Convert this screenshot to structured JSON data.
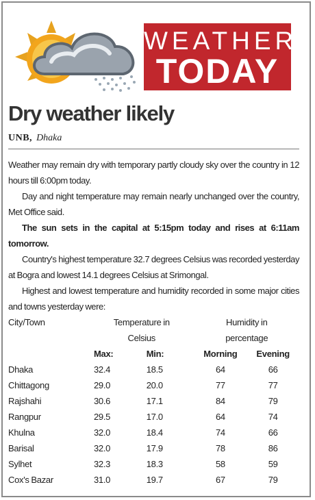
{
  "banner": {
    "top": "WEATHER",
    "bottom": "TODAY"
  },
  "headline": "Dry weather likely",
  "byline": {
    "agency": "UNB,",
    "place": "Dhaka"
  },
  "paragraphs": [
    "Weather may remain dry with temporary partly cloudy sky over the country in 12 hours till 6:00pm today.",
    "Day and night temperature may remain nearly unchanged over the country, Met Office said.",
    "The sun sets in the capital at 5:15pm today and rises at 6:11am tomorrow.",
    "Country's highest temperature 32.7 degrees Celsius was recorded yesterday at Bogra and lowest 14.1 degrees Celsius at Srimongal.",
    "Highest and lowest temperature and humidity recorded in some major cities and towns yesterday were:"
  ],
  "table": {
    "columns": [
      "City/Town",
      "Temperature in Celsius",
      "Humidity in percentage"
    ],
    "subheaders": [
      "Max:",
      "Min:",
      "Morning",
      "Evening"
    ],
    "rows": [
      [
        "Dhaka",
        "32.4",
        "18.5",
        "64",
        "66"
      ],
      [
        "Chittagong",
        "29.0",
        "20.0",
        "77",
        "77"
      ],
      [
        "Rajshahi",
        "30.6",
        "17.1",
        "84",
        "79"
      ],
      [
        "Rangpur",
        "29.5",
        "17.0",
        "64",
        "74"
      ],
      [
        "Khulna",
        "32.0",
        "18.4",
        "74",
        "66"
      ],
      [
        "Barisal",
        "32.0",
        "17.9",
        "78",
        "86"
      ],
      [
        "Sylhet",
        "32.3",
        "18.3",
        "58",
        "59"
      ],
      [
        "Cox's Bazar",
        "31.0",
        "19.7",
        "67",
        "79"
      ]
    ]
  }
}
